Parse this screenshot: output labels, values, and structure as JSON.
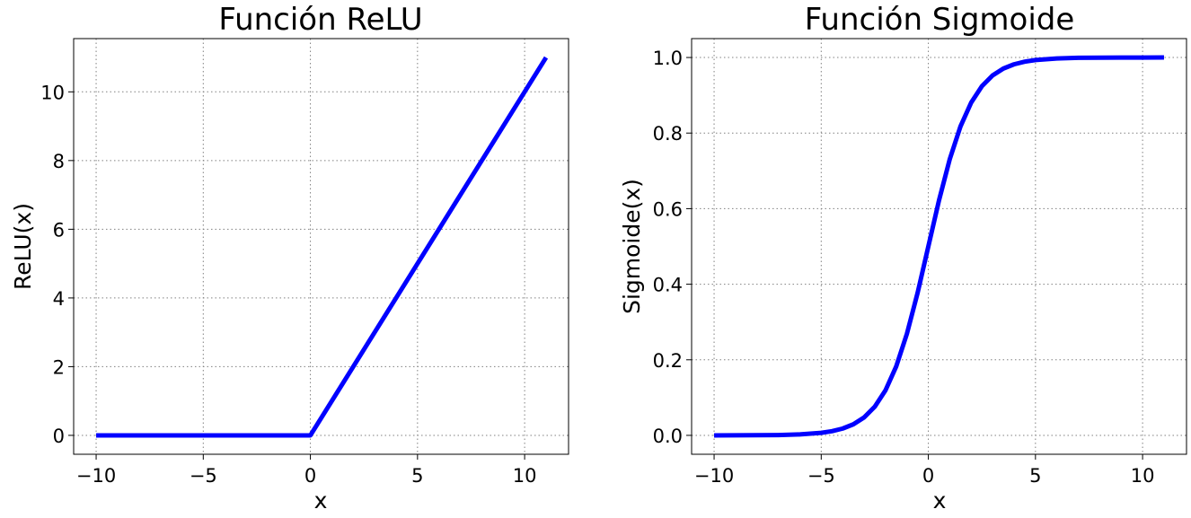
{
  "colors": {
    "line": "#0000ff",
    "grid": "#808080"
  },
  "chart_data": [
    {
      "type": "line",
      "title": "Función ReLU",
      "xlabel": "x",
      "ylabel": "ReLU(x)",
      "xlim": [
        -11.05,
        12.05
      ],
      "ylim": [
        -0.55,
        11.55
      ],
      "xticks": [
        -10,
        -5,
        0,
        5,
        10
      ],
      "xtick_labels": [
        "−10",
        "−5",
        "0",
        "5",
        "10"
      ],
      "yticks": [
        0,
        2,
        4,
        6,
        8,
        10
      ],
      "ytick_labels": [
        "0",
        "2",
        "4",
        "6",
        "8",
        "10"
      ],
      "grid": true,
      "series": [
        {
          "x": [
            -10,
            0,
            11
          ],
          "y": [
            0,
            0,
            11
          ]
        }
      ]
    },
    {
      "type": "line",
      "title": "Función Sigmoide",
      "xlabel": "x",
      "ylabel": "Sigmoide(x)",
      "xlim": [
        -11.05,
        12.05
      ],
      "ylim": [
        -0.05,
        1.05
      ],
      "xticks": [
        -10,
        -5,
        0,
        5,
        10
      ],
      "xtick_labels": [
        "−10",
        "−5",
        "0",
        "5",
        "10"
      ],
      "yticks": [
        0,
        0.2,
        0.4,
        0.6,
        0.8,
        1.0
      ],
      "ytick_labels": [
        "0.0",
        "0.2",
        "0.4",
        "0.6",
        "0.8",
        "1.0"
      ],
      "grid": true,
      "series": [
        {
          "x": [
            -10,
            -9,
            -8,
            -7,
            -6,
            -5,
            -4.5,
            -4,
            -3.5,
            -3,
            -2.5,
            -2,
            -1.5,
            -1,
            -0.5,
            0,
            0.5,
            1,
            1.5,
            2,
            2.5,
            3,
            3.5,
            4,
            4.5,
            5,
            6,
            7,
            8,
            9,
            10,
            11
          ],
          "y": [
            4.54e-05,
            0.000123,
            0.000335,
            0.000911,
            0.00247,
            0.00669,
            0.011,
            0.018,
            0.0293,
            0.0474,
            0.0759,
            0.1192,
            0.1824,
            0.2689,
            0.3775,
            0.5,
            0.6225,
            0.7311,
            0.8176,
            0.8808,
            0.9241,
            0.9526,
            0.9707,
            0.982,
            0.989,
            0.9933,
            0.9975,
            0.9991,
            0.99966,
            0.99988,
            0.99995,
            0.99998
          ]
        }
      ]
    }
  ]
}
